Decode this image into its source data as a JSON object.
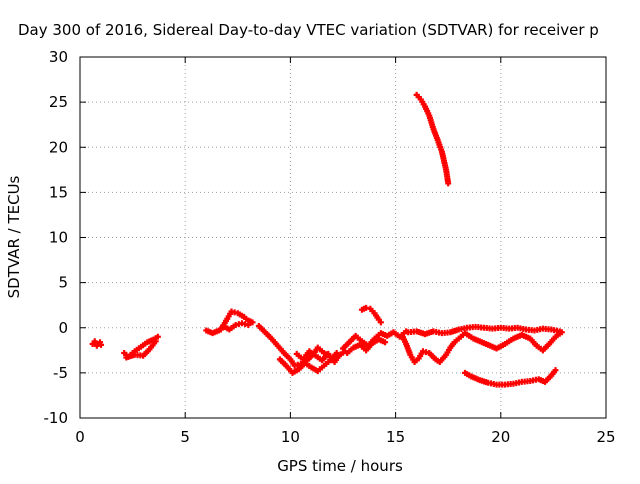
{
  "chart_data": {
    "type": "scatter",
    "title": "Day 300 of 2016, Sidereal Day-to-day VTEC variation (SDTVAR) for receiver p",
    "xlabel": "GPS time / hours",
    "ylabel": "SDTVAR / TECUs",
    "xlim": [
      0,
      25
    ],
    "ylim": [
      -10,
      30
    ],
    "xticks": [
      "0",
      "5",
      "10",
      "15",
      "20",
      "25"
    ],
    "yticks": [
      "-10",
      "-5",
      "0",
      "5",
      "10",
      "15",
      "20",
      "25",
      "30"
    ],
    "grid": true,
    "legend": "none",
    "marker": "plus",
    "color": "#ff0000",
    "series": [
      {
        "segments": [
          [
            [
              0.6,
              -1.8
            ],
            [
              0.7,
              -1.5
            ],
            [
              0.8,
              -2.0
            ],
            [
              0.95,
              -1.6
            ],
            [
              1.0,
              -1.9
            ]
          ],
          [
            [
              2.1,
              -2.8
            ],
            [
              2.3,
              -3.2
            ],
            [
              2.6,
              -2.6
            ],
            [
              2.9,
              -2.1
            ],
            [
              3.2,
              -1.6
            ],
            [
              3.5,
              -1.3
            ],
            [
              3.7,
              -1.0
            ]
          ],
          [
            [
              2.2,
              -3.3
            ],
            [
              2.6,
              -3.0
            ],
            [
              3.0,
              -3.1
            ],
            [
              3.3,
              -2.4
            ],
            [
              3.6,
              -1.5
            ]
          ],
          [
            [
              6.0,
              -0.3
            ],
            [
              6.3,
              -0.6
            ],
            [
              6.7,
              -0.2
            ],
            [
              7.0,
              1.0
            ],
            [
              7.2,
              1.8
            ],
            [
              7.5,
              1.6
            ],
            [
              7.8,
              1.2
            ],
            [
              8.0,
              0.8
            ],
            [
              8.2,
              0.6
            ]
          ],
          [
            [
              6.8,
              0.2
            ],
            [
              7.1,
              -0.2
            ],
            [
              7.4,
              0.3
            ],
            [
              7.7,
              0.5
            ],
            [
              8.0,
              0.3
            ]
          ],
          [
            [
              8.5,
              0.2
            ],
            [
              8.8,
              -0.5
            ],
            [
              9.1,
              -1.2
            ],
            [
              9.4,
              -2.0
            ],
            [
              9.7,
              -2.8
            ],
            [
              10.0,
              -3.5
            ],
            [
              10.2,
              -4.2
            ],
            [
              10.5,
              -4.0
            ],
            [
              10.8,
              -3.6
            ],
            [
              11.1,
              -2.9
            ],
            [
              11.3,
              -2.2
            ],
            [
              11.6,
              -2.8
            ],
            [
              11.9,
              -3.2
            ],
            [
              12.1,
              -3.8
            ],
            [
              12.3,
              -3.1
            ],
            [
              12.6,
              -2.6
            ]
          ],
          [
            [
              9.5,
              -3.5
            ],
            [
              9.8,
              -4.2
            ],
            [
              10.1,
              -5.0
            ],
            [
              10.4,
              -4.6
            ],
            [
              10.7,
              -3.9
            ],
            [
              11.0,
              -4.4
            ],
            [
              11.3,
              -4.8
            ],
            [
              11.6,
              -4.2
            ],
            [
              11.9,
              -3.6
            ],
            [
              12.2,
              -2.8
            ]
          ],
          [
            [
              10.3,
              -2.9
            ],
            [
              10.6,
              -3.5
            ],
            [
              10.9,
              -2.6
            ],
            [
              11.2,
              -3.1
            ],
            [
              11.5,
              -3.6
            ],
            [
              11.8,
              -2.9
            ]
          ],
          [
            [
              12.5,
              -2.3
            ],
            [
              12.8,
              -1.6
            ],
            [
              13.1,
              -0.9
            ],
            [
              13.4,
              -1.5
            ],
            [
              13.7,
              -2.0
            ],
            [
              14.0,
              -1.2
            ],
            [
              14.3,
              -0.6
            ],
            [
              14.6,
              -0.9
            ],
            [
              14.9,
              -0.5
            ],
            [
              15.2,
              -1.0
            ],
            [
              15.5,
              -0.4
            ]
          ],
          [
            [
              12.7,
              -2.8
            ],
            [
              13.0,
              -2.2
            ],
            [
              13.3,
              -1.9
            ],
            [
              13.6,
              -2.5
            ],
            [
              13.9,
              -1.7
            ],
            [
              14.2,
              -1.3
            ],
            [
              14.5,
              -1.6
            ]
          ],
          [
            [
              13.4,
              2.0
            ],
            [
              13.6,
              2.2
            ],
            [
              13.8,
              2.1
            ],
            [
              14.0,
              1.6
            ],
            [
              14.2,
              0.9
            ],
            [
              14.3,
              0.6
            ]
          ],
          [
            [
              15.3,
              -0.8
            ],
            [
              15.5,
              -1.8
            ],
            [
              15.7,
              -3.0
            ],
            [
              15.9,
              -3.8
            ],
            [
              16.1,
              -3.4
            ],
            [
              16.3,
              -2.6
            ],
            [
              16.6,
              -2.8
            ],
            [
              16.9,
              -3.5
            ],
            [
              17.1,
              -3.8
            ],
            [
              17.4,
              -3.0
            ],
            [
              17.6,
              -2.2
            ],
            [
              17.8,
              -1.6
            ],
            [
              18.0,
              -1.2
            ],
            [
              18.2,
              -0.8
            ]
          ],
          [
            [
              15.6,
              -0.5
            ],
            [
              16.0,
              -0.4
            ],
            [
              16.4,
              -0.7
            ],
            [
              16.8,
              -0.4
            ],
            [
              17.2,
              -0.6
            ],
            [
              17.6,
              -0.5
            ],
            [
              18.0,
              -0.2
            ],
            [
              18.4,
              0.0
            ],
            [
              18.8,
              0.1
            ],
            [
              19.2,
              0.0
            ],
            [
              19.6,
              -0.1
            ],
            [
              20.0,
              0.0
            ],
            [
              20.4,
              -0.1
            ],
            [
              20.8,
              0.0
            ],
            [
              21.2,
              -0.2
            ],
            [
              21.6,
              -0.3
            ],
            [
              22.0,
              -0.1
            ],
            [
              22.4,
              -0.2
            ],
            [
              22.8,
              -0.4
            ]
          ],
          [
            [
              18.3,
              -0.6
            ],
            [
              18.7,
              -1.2
            ],
            [
              19.1,
              -1.6
            ],
            [
              19.5,
              -2.0
            ],
            [
              19.8,
              -2.3
            ],
            [
              20.2,
              -1.8
            ],
            [
              20.6,
              -1.2
            ],
            [
              21.0,
              -0.8
            ],
            [
              21.4,
              -1.2
            ],
            [
              21.7,
              -2.0
            ],
            [
              22.0,
              -2.5
            ],
            [
              22.3,
              -1.8
            ],
            [
              22.6,
              -1.0
            ],
            [
              22.9,
              -0.5
            ]
          ],
          [
            [
              18.3,
              -5.0
            ],
            [
              18.6,
              -5.4
            ],
            [
              19.0,
              -5.8
            ],
            [
              19.4,
              -6.1
            ],
            [
              19.8,
              -6.3
            ],
            [
              20.2,
              -6.3
            ],
            [
              20.6,
              -6.2
            ],
            [
              21.0,
              -6.0
            ],
            [
              21.4,
              -5.9
            ],
            [
              21.8,
              -5.7
            ],
            [
              22.1,
              -6.0
            ],
            [
              22.4,
              -5.3
            ],
            [
              22.6,
              -4.7
            ]
          ],
          [
            [
              16.0,
              25.8
            ],
            [
              16.2,
              25.3
            ],
            [
              16.4,
              24.5
            ],
            [
              16.6,
              23.5
            ],
            [
              16.8,
              22.0
            ],
            [
              17.0,
              20.8
            ],
            [
              17.2,
              19.5
            ],
            [
              17.4,
              17.5
            ],
            [
              17.5,
              16.0
            ]
          ]
        ]
      }
    ]
  }
}
